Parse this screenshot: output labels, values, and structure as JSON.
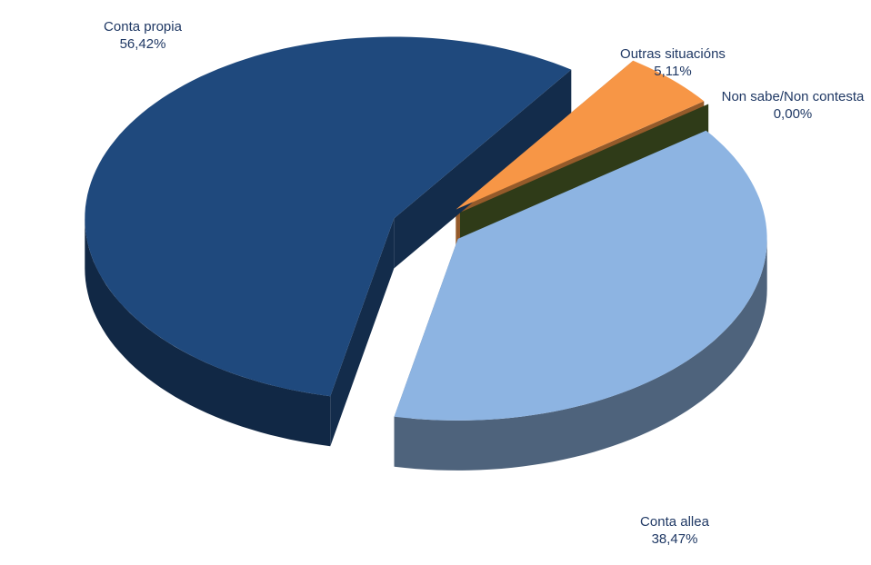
{
  "chart_data": {
    "type": "pie3d",
    "categories": [
      "Outras situacións",
      "Non sabe/Non contesta",
      "Conta allea",
      "Conta propia"
    ],
    "values": [
      5.11,
      0.0,
      38.47,
      56.42
    ],
    "value_labels": [
      "5,11%",
      "0,00%",
      "38,47%",
      "56,42%"
    ],
    "colors": [
      "#f79646",
      "#4f6228",
      "#8db4e2",
      "#1f497d"
    ]
  }
}
